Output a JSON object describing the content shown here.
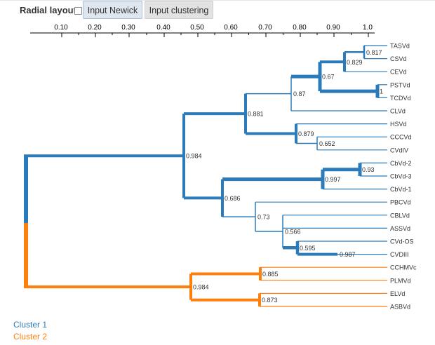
{
  "toolbar": {
    "radial_label": "Radial layout",
    "newick_button": "Input Newick",
    "clustering_button": "Input clustering"
  },
  "axis": {
    "ticks": [
      "0.10",
      "0.20",
      "0.30",
      "0.40",
      "0.50",
      "0.60",
      "0.70",
      "0.80",
      "0.90",
      "1.0"
    ]
  },
  "colors": {
    "cluster1": "#2b7bba",
    "cluster2": "#ff7f0e",
    "text": "#333333"
  },
  "legend": {
    "cluster1": "Cluster 1",
    "cluster2": "Cluster 2"
  },
  "tree": {
    "leaves": [
      "TASVd",
      "CSVd",
      "CEVd",
      "PSTVd",
      "TCDVd",
      "CLVd",
      "HSVd",
      "CCCVd",
      "CVdIV",
      "CbVd-2",
      "CbVd-3",
      "CbVd-1",
      "PBCVd",
      "CBLVd",
      "ASSVd",
      "CVd-OS",
      "CVDIII",
      "CCHMVc",
      "PLMVd",
      "ELVd",
      "ASBVd"
    ],
    "nodes": [
      {
        "id": "root"
      },
      {
        "id": "n0984a",
        "label": "0.984",
        "parent": "root",
        "cluster": 1
      },
      {
        "id": "n0881",
        "label": "0.881",
        "parent": "n0984a",
        "cluster": 1
      },
      {
        "id": "n087",
        "label": "0.87",
        "parent": "n0881",
        "cluster": 1
      },
      {
        "id": "n067",
        "label": "0.67",
        "parent": "n087",
        "cluster": 1
      },
      {
        "id": "n0829",
        "label": "0.829",
        "parent": "n067",
        "cluster": 1
      },
      {
        "id": "n0817",
        "label": "0.817",
        "parent": "n0829",
        "cluster": 1
      },
      {
        "id": "n1",
        "label": "1",
        "parent": "n067",
        "cluster": 1
      },
      {
        "id": "n0879",
        "label": "0.879",
        "parent": "n0881",
        "cluster": 1
      },
      {
        "id": "n0652",
        "label": "0.652",
        "parent": "n0879",
        "cluster": 1
      },
      {
        "id": "n0686",
        "label": "0.686",
        "parent": "n0984a",
        "cluster": 1
      },
      {
        "id": "n0997",
        "label": "0.997",
        "parent": "n0686",
        "cluster": 1
      },
      {
        "id": "n093",
        "label": "0.93",
        "parent": "n0997",
        "cluster": 1
      },
      {
        "id": "n073",
        "label": "0.73",
        "parent": "n0686",
        "cluster": 1
      },
      {
        "id": "n0566",
        "label": "0.566",
        "parent": "n073",
        "cluster": 1
      },
      {
        "id": "n0595",
        "label": "0.595",
        "parent": "n0566",
        "cluster": 1
      },
      {
        "id": "n0987",
        "label": "0.987",
        "parent": "n0595",
        "cluster": 1
      },
      {
        "id": "n0984b",
        "label": "0.984",
        "parent": "root",
        "cluster": 2
      },
      {
        "id": "n0885",
        "label": "0.885",
        "parent": "n0984b",
        "cluster": 2
      },
      {
        "id": "n0873",
        "label": "0.873",
        "parent": "n0984b",
        "cluster": 2
      }
    ],
    "leaf_parents": {
      "TASVd": "n0817",
      "CSVd": "n0817",
      "CEVd": "n0829",
      "PSTVd": "n1",
      "TCDVd": "n1",
      "CLVd": "n087",
      "HSVd": "n0879",
      "CCCVd": "n0652",
      "CVdIV": "n0652",
      "CbVd-2": "n093",
      "CbVd-3": "n093",
      "CbVd-1": "n0997",
      "PBCVd": "n073",
      "CBLVd": "n0566",
      "ASSVd": "n0566",
      "CVd-OS": "n0595",
      "CVDIII": "n0987",
      "CCHMVc": "n0885",
      "PLMVd": "n0885",
      "ELVd": "n0873",
      "ASBVd": "n0873"
    }
  }
}
